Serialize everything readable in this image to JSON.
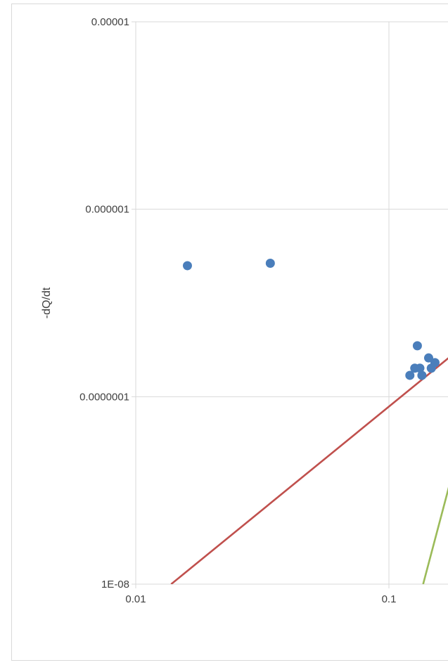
{
  "chart_data": {
    "type": "scatter",
    "xscale": "log",
    "yscale": "log",
    "xlim": [
      0.01,
      0.2
    ],
    "ylim": [
      1e-08,
      1e-05
    ],
    "grid": true,
    "xlabel": "",
    "ylabel": "-dQ/dt",
    "x_tick_labels": [
      "0.01",
      "0.1"
    ],
    "y_tick_labels": [
      "1E-08",
      "0.0000001",
      "0.000001",
      "0.00001"
    ],
    "x_ticks": [
      0.01,
      0.1
    ],
    "y_ticks": [
      1e-08,
      1e-07,
      1e-06,
      1e-05
    ],
    "series": [
      {
        "kind": "points",
        "color": "#4a7ebb",
        "points": [
          [
            0.016,
            5e-07
          ],
          [
            0.034,
            5.15e-07
          ],
          [
            0.121,
            1.3e-07
          ],
          [
            0.1265,
            1.42e-07
          ],
          [
            0.1295,
            1.87e-07
          ],
          [
            0.1325,
            1.42e-07
          ],
          [
            0.135,
            1.3e-07
          ],
          [
            0.1435,
            1.61e-07
          ],
          [
            0.147,
            1.42e-07
          ],
          [
            0.152,
            1.52e-07
          ]
        ]
      },
      {
        "kind": "line",
        "color": "#c0504d",
        "points": [
          [
            0.0138,
            1e-08
          ],
          [
            0.2,
            1.9e-07
          ]
        ]
      },
      {
        "kind": "line",
        "color": "#9bbb59",
        "points": [
          [
            0.1365,
            1e-08
          ],
          [
            0.2,
            7e-08
          ]
        ]
      }
    ]
  }
}
